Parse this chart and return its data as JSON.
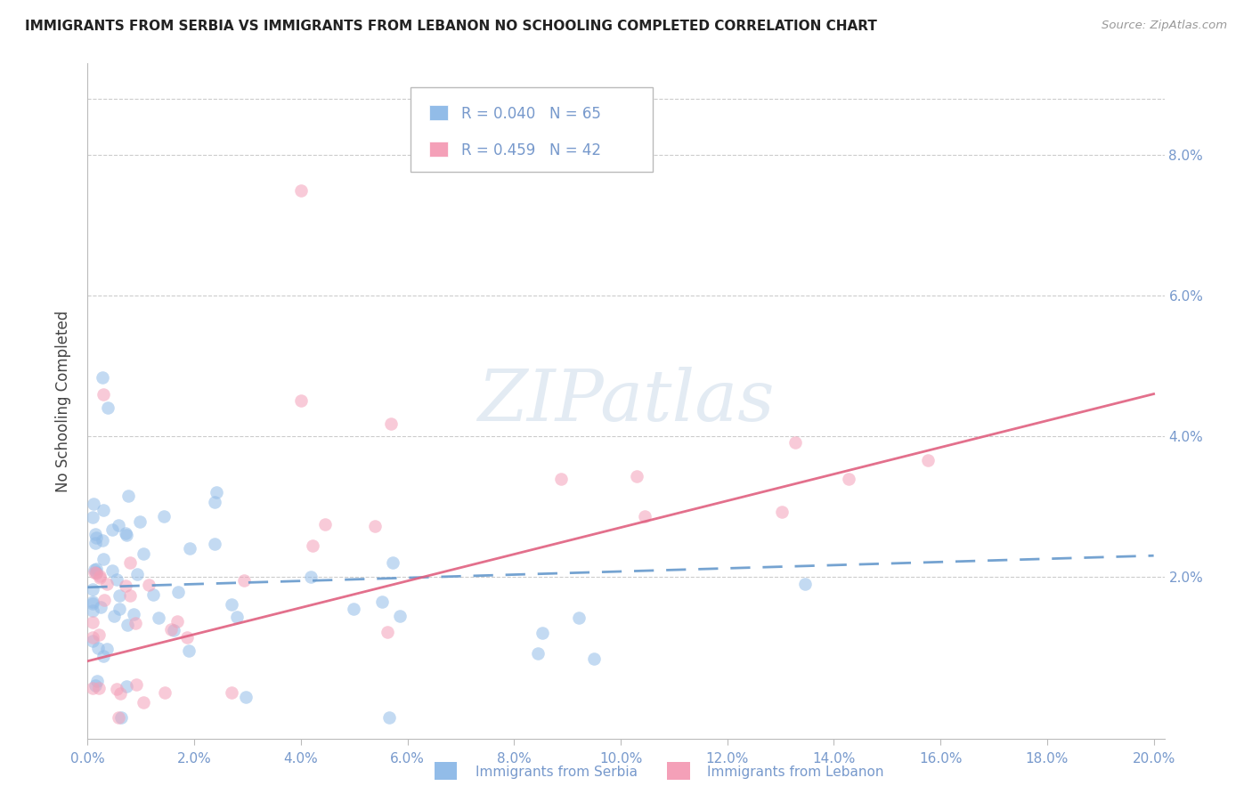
{
  "title": "IMMIGRANTS FROM SERBIA VS IMMIGRANTS FROM LEBANON NO SCHOOLING COMPLETED CORRELATION CHART",
  "source": "Source: ZipAtlas.com",
  "ylabel_left": "No Schooling Completed",
  "xlim": [
    0.0,
    0.202
  ],
  "ylim": [
    -0.003,
    0.093
  ],
  "xtick_vals": [
    0.0,
    0.02,
    0.04,
    0.06,
    0.08,
    0.1,
    0.12,
    0.14,
    0.16,
    0.18,
    0.2
  ],
  "xtick_labels": [
    "0.0%",
    "2.0%",
    "4.0%",
    "6.0%",
    "8.0%",
    "10.0%",
    "12.0%",
    "14.0%",
    "16.0%",
    "18.0%",
    "20.0%"
  ],
  "ytick_vals": [
    0.0,
    0.02,
    0.04,
    0.06,
    0.08
  ],
  "ytick_labels": [
    "",
    "2.0%",
    "4.0%",
    "6.0%",
    "8.0%"
  ],
  "serbia_color": "#92bce8",
  "lebanon_color": "#f4a0b8",
  "serbia_R": 0.04,
  "serbia_N": 65,
  "lebanon_R": 0.459,
  "lebanon_N": 42,
  "legend_label_serbia": "Immigrants from Serbia",
  "legend_label_lebanon": "Immigrants from Lebanon",
  "serbia_line_color": "#6699cc",
  "lebanon_line_color": "#e06080",
  "watermark": "ZIPatlas",
  "tick_color": "#7799cc",
  "grid_color": "#cccccc",
  "title_color": "#222222",
  "source_color": "#999999",
  "ylabel_color": "#444444",
  "serbia_line_start_y": 0.0185,
  "serbia_line_end_y": 0.023,
  "lebanon_line_start_y": 0.008,
  "lebanon_line_end_y": 0.046
}
